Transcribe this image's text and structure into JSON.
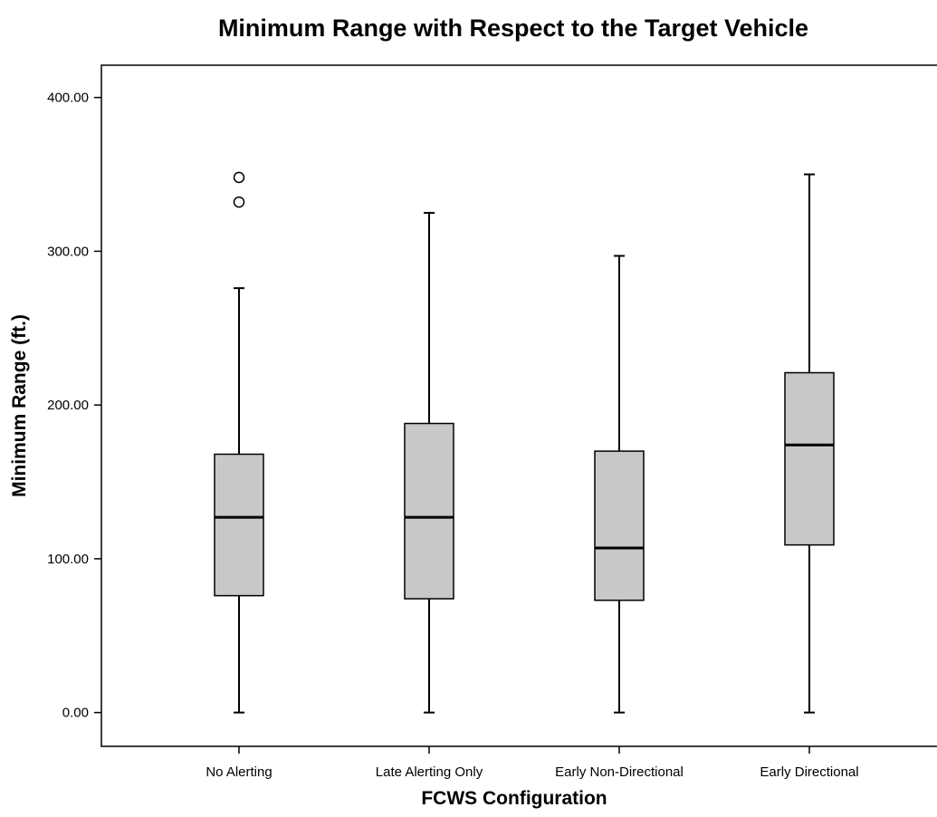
{
  "chart_data": {
    "type": "boxplot",
    "title": "Minimum Range with Respect to the Target Vehicle",
    "xlabel": "FCWS Configuration",
    "ylabel": "Minimum Range (ft.)",
    "categories": [
      "No Alerting",
      "Late Alerting Only",
      "Early Non-Directional",
      "Early Directional"
    ],
    "y_ticks": [
      0,
      100,
      200,
      300,
      400
    ],
    "y_tick_labels": [
      "0.00",
      "100.00",
      "200.00",
      "300.00",
      "400.00"
    ],
    "ylim": [
      -22,
      421
    ],
    "grid": false,
    "boxes": [
      {
        "category": "No Alerting",
        "min": 0,
        "q1": 76,
        "median": 127,
        "q3": 168,
        "max": 276,
        "outliers": [
          332,
          348
        ]
      },
      {
        "category": "Late Alerting Only",
        "min": 0,
        "q1": 74,
        "median": 127,
        "q3": 188,
        "max": 325,
        "outliers": []
      },
      {
        "category": "Early Non-Directional",
        "min": 0,
        "q1": 73,
        "median": 107,
        "q3": 170,
        "max": 297,
        "outliers": []
      },
      {
        "category": "Early Directional",
        "min": 0,
        "q1": 109,
        "median": 174,
        "q3": 221,
        "max": 350,
        "outliers": []
      }
    ],
    "colors": {
      "box_fill": "#c8c8c8",
      "stroke": "#000000",
      "background": "#ffffff"
    }
  }
}
